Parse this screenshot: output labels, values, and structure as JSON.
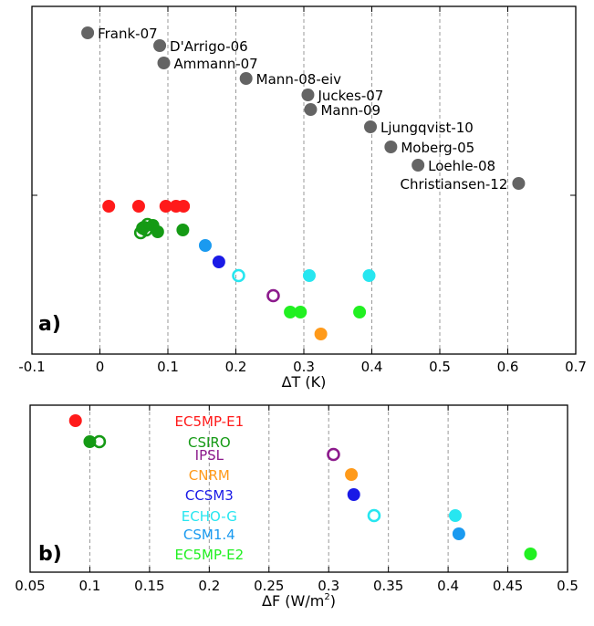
{
  "chart_data": [
    {
      "type": "scatter",
      "panel_label": "a)",
      "xlabel": "ΔT (K)",
      "xlim": [
        -0.1,
        0.7
      ],
      "xticks": [
        -0.1,
        0,
        0.1,
        0.2,
        0.3,
        0.4,
        0.5,
        0.6,
        0.7
      ],
      "xtick_labels": [
        "-0.1",
        "0",
        "0.1",
        "0.2",
        "0.3",
        "0.4",
        "0.5",
        "0.6",
        "0.7"
      ],
      "grid": "vertical dashed",
      "reconstructions": [
        {
          "name": "Frank-07",
          "x": -0.018
        },
        {
          "name": "D'Arrigo-06",
          "x": 0.088
        },
        {
          "name": "Ammann-07",
          "x": 0.094
        },
        {
          "name": "Mann-08-eiv",
          "x": 0.215
        },
        {
          "name": "Juckes-07",
          "x": 0.306
        },
        {
          "name": "Mann-09",
          "x": 0.31
        },
        {
          "name": "Ljungqvist-10",
          "x": 0.398
        },
        {
          "name": "Moberg-05",
          "x": 0.428
        },
        {
          "name": "Loehle-08",
          "x": 0.468
        },
        {
          "name": "Christiansen-12",
          "x": 0.616
        }
      ],
      "model_points": [
        {
          "model": "EC5MP-E1",
          "x": [
            0.013,
            0.057,
            0.097,
            0.112,
            0.123
          ],
          "filled": true
        },
        {
          "model": "CSIRO",
          "x": [
            0.065,
            0.078,
            0.085,
            0.122
          ],
          "filled": true
        },
        {
          "model": "CSIRO",
          "x": [
            0.06,
            0.063,
            0.068,
            0.07
          ],
          "filled": false
        },
        {
          "model": "CSM1.4",
          "x": [
            0.155
          ],
          "filled": true
        },
        {
          "model": "CCSM3",
          "x": [
            0.175
          ],
          "filled": true
        },
        {
          "model": "ECHO-G",
          "x": [
            0.204
          ],
          "filled": false
        },
        {
          "model": "ECHO-G",
          "x": [
            0.308,
            0.396
          ],
          "filled": true
        },
        {
          "model": "IPSL",
          "x": [
            0.255
          ],
          "filled": false
        },
        {
          "model": "EC5MP-E2",
          "x": [
            0.28,
            0.295,
            0.382
          ],
          "filled": true
        },
        {
          "model": "CNRM",
          "x": [
            0.325
          ],
          "filled": true
        }
      ]
    },
    {
      "type": "scatter",
      "panel_label": "b)",
      "xlabel": "ΔF (W/m",
      "xlabel_sup": "2",
      "xlabel_end": ")",
      "xlim": [
        0.05,
        0.5
      ],
      "xticks": [
        0.05,
        0.1,
        0.15,
        0.2,
        0.25,
        0.3,
        0.35,
        0.4,
        0.45,
        0.5
      ],
      "xtick_labels": [
        "0.05",
        "0.1",
        "0.15",
        "0.2",
        "0.25",
        "0.3",
        "0.35",
        "0.4",
        "0.45",
        "0.5"
      ],
      "grid": "vertical dashed",
      "models": [
        {
          "name": "EC5MP-E1",
          "points": [
            {
              "x": 0.088,
              "filled": true
            }
          ]
        },
        {
          "name": "CSIRO",
          "points": [
            {
              "x": 0.1,
              "filled": true
            },
            {
              "x": 0.108,
              "filled": false
            }
          ]
        },
        {
          "name": "IPSL",
          "points": [
            {
              "x": 0.304,
              "filled": false
            }
          ]
        },
        {
          "name": "CNRM",
          "points": [
            {
              "x": 0.319,
              "filled": true
            }
          ]
        },
        {
          "name": "CCSM3",
          "points": [
            {
              "x": 0.321,
              "filled": true
            }
          ]
        },
        {
          "name": "ECHO-G",
          "points": [
            {
              "x": 0.338,
              "filled": false
            },
            {
              "x": 0.406,
              "filled": true
            }
          ]
        },
        {
          "name": "CSM1.4",
          "points": [
            {
              "x": 0.409,
              "filled": true
            }
          ]
        },
        {
          "name": "EC5MP-E2",
          "points": [
            {
              "x": 0.469,
              "filled": true
            }
          ]
        }
      ]
    }
  ],
  "colors": {
    "reconstruction": "#646464",
    "EC5MP-E1": "#ff1a1a",
    "CSIRO": "#159a15",
    "IPSL": "#8c1a8c",
    "CNRM": "#ff9a1a",
    "CCSM3": "#1a1ae6",
    "ECHO-G": "#27e6f0",
    "CSM1.4": "#1a9af0",
    "EC5MP-E2": "#21f021",
    "grid": "#999999"
  }
}
